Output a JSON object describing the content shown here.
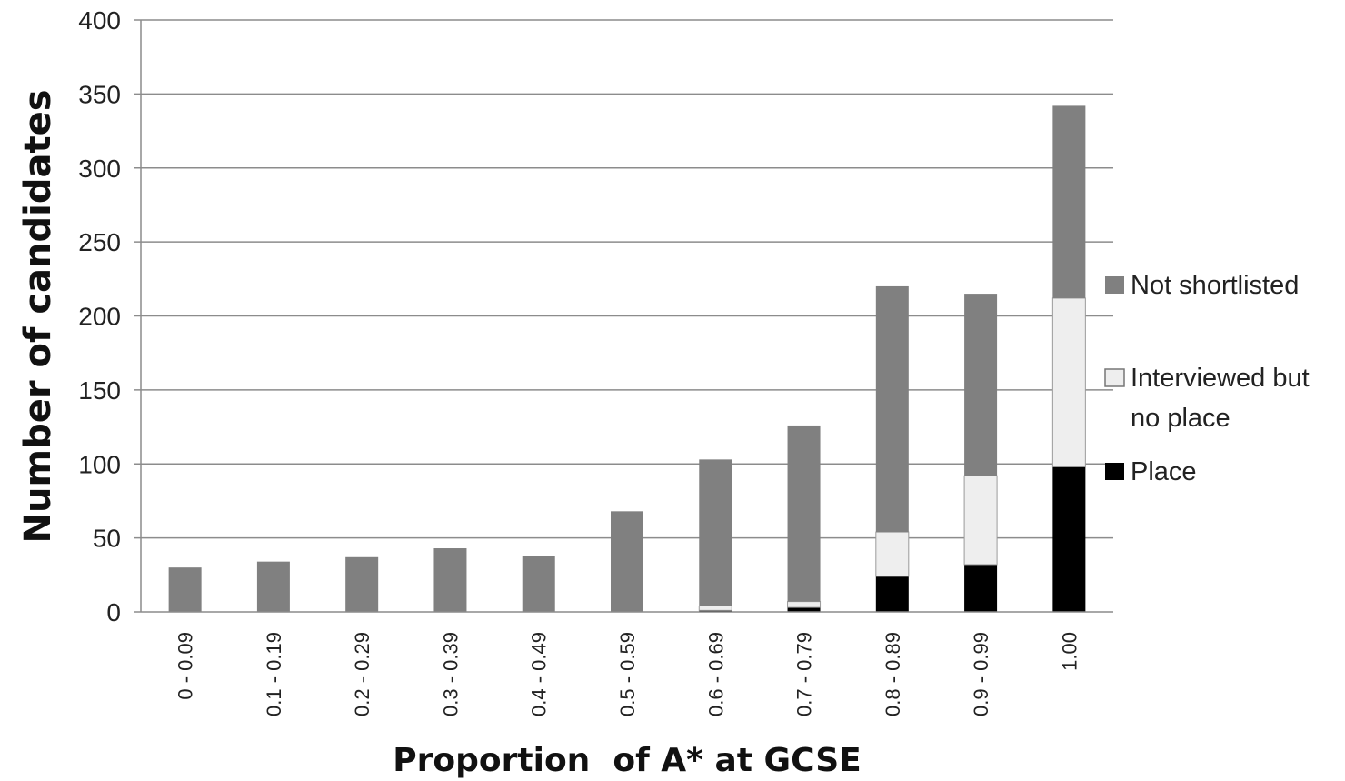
{
  "chart_data": {
    "type": "bar",
    "stacked": true,
    "title": "",
    "xlabel": "Proportion  of A* at GCSE",
    "ylabel": "Number of candidates",
    "ylim": [
      0,
      400
    ],
    "yticks": [
      0,
      50,
      100,
      150,
      200,
      250,
      300,
      350,
      400
    ],
    "grid": true,
    "legend_position": "right",
    "categories": [
      "0 - 0.09",
      "0.1 - 0.19",
      "0.2 - 0.29",
      "0.3 - 0.39",
      "0.4 - 0.49",
      "0.5 - 0.59",
      "0.6 - 0.69",
      "0.7 - 0.79",
      "0.8 - 0.89",
      "0.9 - 0.99",
      "1.00"
    ],
    "series": [
      {
        "name": "Place",
        "color": "#000000",
        "values": [
          0,
          0,
          0,
          0,
          0,
          0,
          1,
          3,
          24,
          32,
          98
        ]
      },
      {
        "name": "Interviewed but no place",
        "color": "#eeeeee",
        "values": [
          0,
          0,
          0,
          0,
          0,
          0,
          3,
          4,
          30,
          60,
          114
        ]
      },
      {
        "name": "Not shortlisted",
        "color": "#808080",
        "values": [
          30,
          34,
          37,
          43,
          38,
          68,
          99,
          119,
          166,
          123,
          130
        ]
      }
    ]
  },
  "legend": {
    "items": [
      {
        "lines": [
          "Not shortlisted"
        ],
        "color": "#808080"
      },
      {
        "lines": [
          "Interviewed but",
          "no place"
        ],
        "color": "#eeeeee"
      },
      {
        "lines": [
          "Place"
        ],
        "color": "#000000"
      }
    ]
  }
}
